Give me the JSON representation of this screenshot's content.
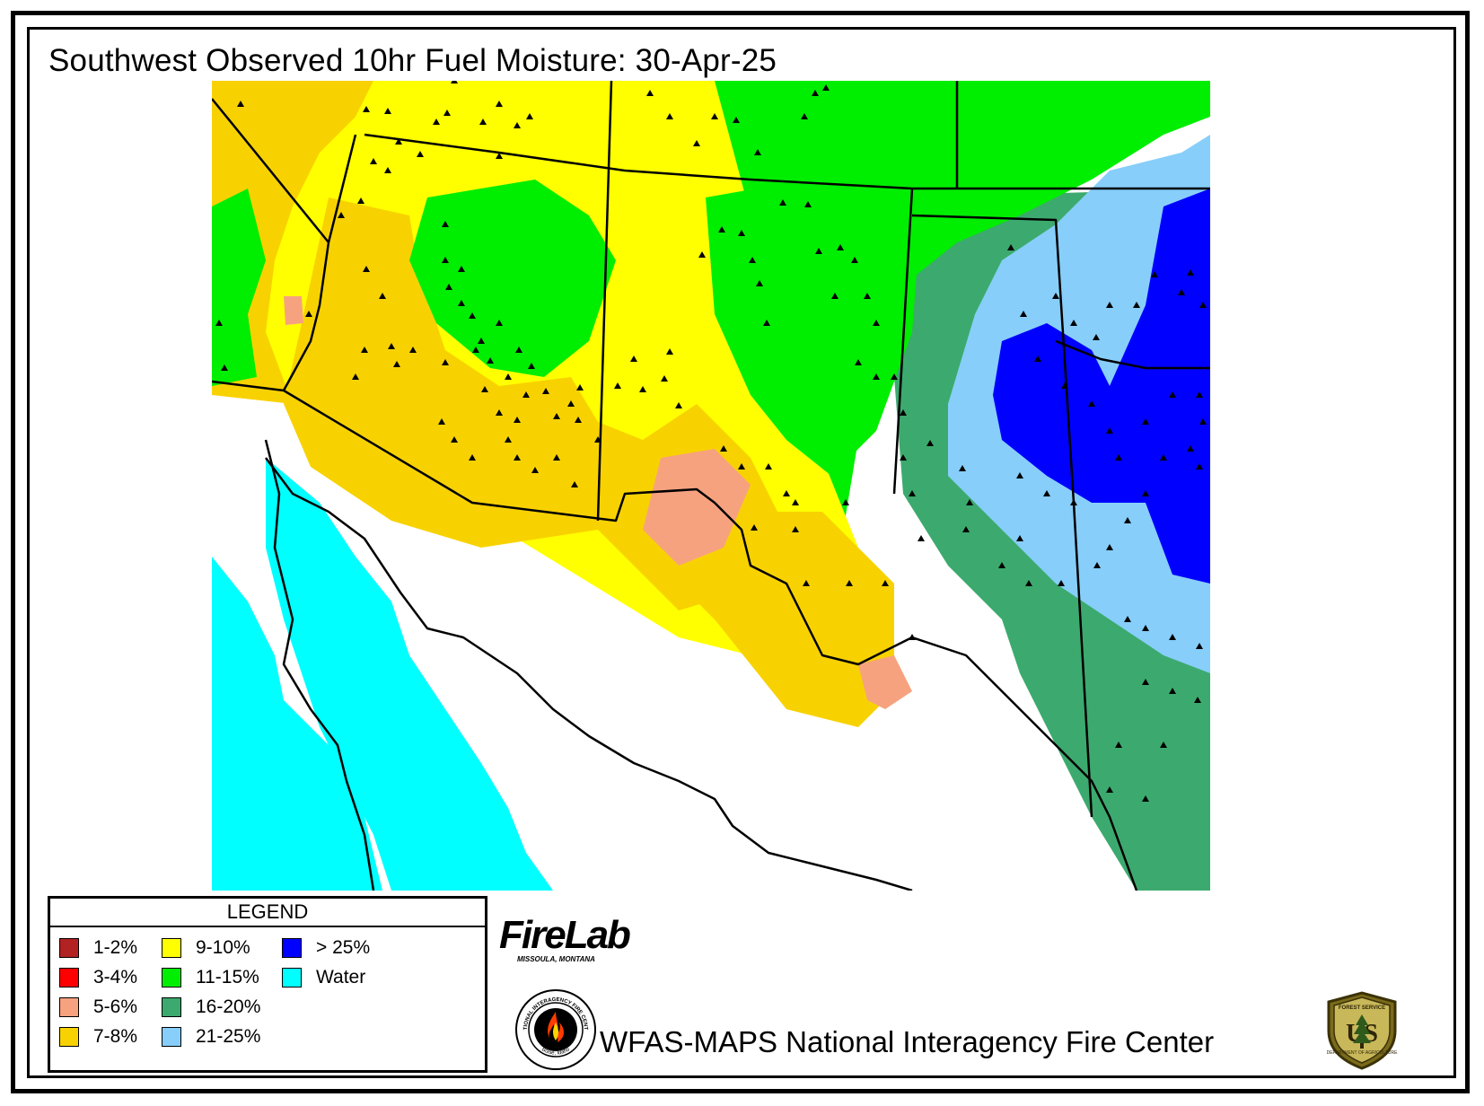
{
  "title": "Southwest Observed 10hr Fuel Moisture: 30-Apr-25",
  "legend": {
    "title": "LEGEND",
    "items": [
      {
        "label": "1-2%",
        "color": "#b22222"
      },
      {
        "label": "3-4%",
        "color": "#ff0000"
      },
      {
        "label": "5-6%",
        "color": "#f7a27f"
      },
      {
        "label": "7-8%",
        "color": "#f8d200"
      },
      {
        "label": "9-10%",
        "color": "#ffff00"
      },
      {
        "label": "11-15%",
        "color": "#00ee00"
      },
      {
        "label": "16-20%",
        "color": "#3caa6e"
      },
      {
        "label": "21-25%",
        "color": "#87cefa"
      },
      {
        "label": "> 25%",
        "color": "#0000ff"
      },
      {
        "label": "Water",
        "color": "#00ffff"
      }
    ]
  },
  "firelab": {
    "name": "FireLab",
    "location": "MISSOULA, MONTANA"
  },
  "footer": {
    "text": "WFAS-MAPS  National Interagency Fire Center"
  },
  "nifc_seal": {
    "top_text": "NATIONAL INTERAGENCY FIRE CENTER",
    "bottom_text": "Boise, Idaho"
  },
  "usfs_shield": {
    "top_text": "FOREST SERVICE",
    "letters": "US",
    "bottom_text": "DEPARTMENT OF AGRICULTURE"
  },
  "icons": {
    "station_marker": "triangle-icon"
  }
}
